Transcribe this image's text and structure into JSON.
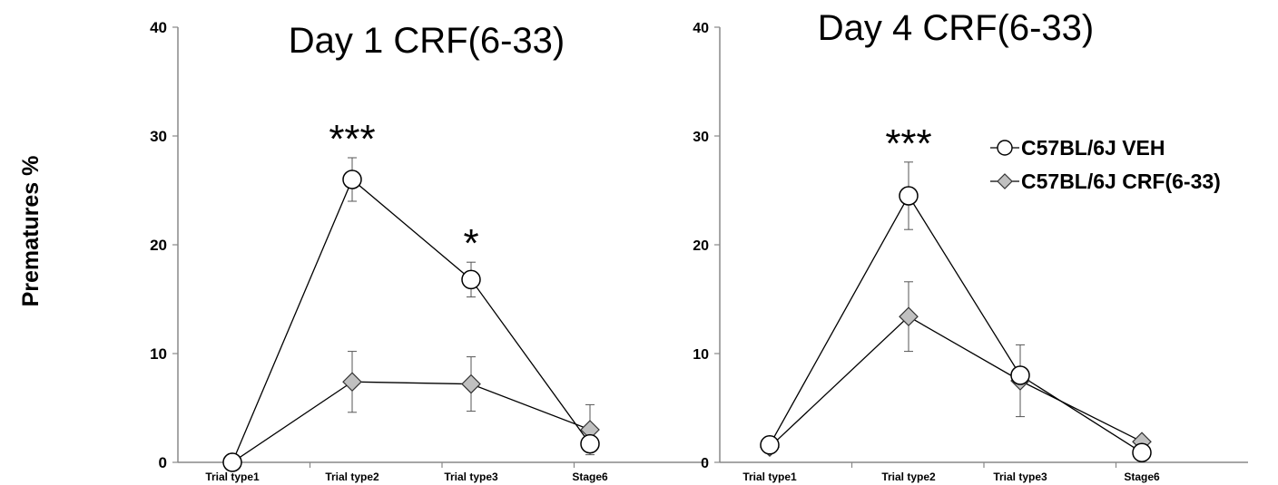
{
  "ylabel": "Prematures %",
  "legend": {
    "position": "top-right",
    "entries": [
      {
        "label": "C57BL/6J VEH",
        "marker": "open-circle"
      },
      {
        "label": "C57BL/6J CRF(6-33)",
        "marker": "gray-diamond"
      }
    ]
  },
  "colors": {
    "line": "#000000",
    "circle_fill": "#ffffff",
    "diamond_fill": "#c0c0c0"
  },
  "chart_data": [
    {
      "type": "line",
      "title": "Day 1 CRF(6-33)",
      "categories": [
        "Trial type1",
        "Trial type2",
        "Trial type3",
        "Stage6"
      ],
      "ylim": [
        0,
        40
      ],
      "yticks": [
        0,
        10,
        20,
        30,
        40
      ],
      "grid": false,
      "series": [
        {
          "name": "C57BL/6J VEH",
          "values": [
            0,
            26,
            16.8,
            1.7
          ],
          "errors": [
            0,
            2,
            1.6,
            0
          ]
        },
        {
          "name": "C57BL/6J CRF(6-33)",
          "values": [
            0,
            7.4,
            7.2,
            3.0
          ],
          "errors": [
            0,
            2.8,
            2.5,
            2.3
          ]
        }
      ],
      "annotations": [
        {
          "category": "Trial type2",
          "text": "***"
        },
        {
          "category": "Trial type3",
          "text": "*"
        }
      ]
    },
    {
      "type": "line",
      "title": "Day 4 CRF(6-33)",
      "categories": [
        "Trial type1",
        "Trial type2",
        "Trial type3",
        "Stage6"
      ],
      "ylim": [
        0,
        40
      ],
      "yticks": [
        0,
        10,
        20,
        30,
        40
      ],
      "grid": false,
      "series": [
        {
          "name": "C57BL/6J VEH",
          "values": [
            1.6,
            24.5,
            8.0,
            0.9
          ],
          "errors": [
            0,
            3.1,
            0,
            0
          ]
        },
        {
          "name": "C57BL/6J CRF(6-33)",
          "values": [
            1.4,
            13.4,
            7.5,
            1.9
          ],
          "errors": [
            0,
            3.2,
            3.3,
            0
          ]
        }
      ],
      "annotations": [
        {
          "category": "Trial type2",
          "text": "***"
        }
      ]
    }
  ]
}
